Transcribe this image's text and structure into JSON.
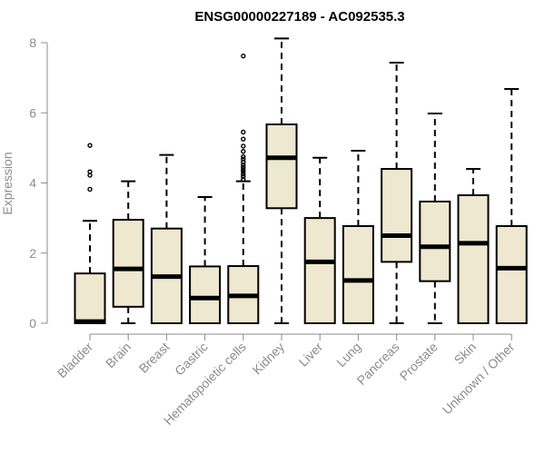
{
  "chart_data": {
    "type": "boxplot",
    "title": "ENSG00000227189 - AC092535.3",
    "xlabel": "",
    "ylabel": "Expression",
    "ylim": [
      0,
      8.2
    ],
    "yticks": [
      0,
      2,
      4,
      6,
      8
    ],
    "grid": false,
    "legend": "none",
    "colors": {
      "box_fill": "#ede8cf",
      "stroke": "#000000",
      "axis": "#8c8c8c",
      "text": "#8c8c8c"
    },
    "categories": [
      "Bladder",
      "Brain",
      "Breast",
      "Gastric",
      "Hematopoietic cells",
      "Kidney",
      "Liver",
      "Lung",
      "Pancreas",
      "Prostate",
      "Skin",
      "Unknown / Other"
    ],
    "boxes": [
      {
        "min": 0.0,
        "q1": 0.0,
        "median": 0.05,
        "q3": 1.42,
        "max": 2.92,
        "outliers": [
          3.82,
          4.22,
          4.32,
          5.07
        ]
      },
      {
        "min": 0.0,
        "q1": 0.47,
        "median": 1.55,
        "q3": 2.95,
        "max": 4.05,
        "outliers": []
      },
      {
        "min": 0.0,
        "q1": 0.0,
        "median": 1.33,
        "q3": 2.7,
        "max": 4.8,
        "outliers": []
      },
      {
        "min": 0.0,
        "q1": 0.0,
        "median": 0.72,
        "q3": 1.62,
        "max": 3.6,
        "outliers": []
      },
      {
        "min": 0.0,
        "q1": 0.0,
        "median": 0.78,
        "q3": 1.63,
        "max": 4.05,
        "outliers": [
          4.1,
          4.18,
          4.25,
          4.32,
          4.38,
          4.45,
          4.52,
          4.6,
          4.68,
          4.75,
          4.9,
          5.05,
          5.25,
          5.45,
          7.62
        ]
      },
      {
        "min": 0.0,
        "q1": 3.28,
        "median": 4.72,
        "q3": 5.67,
        "max": 8.12,
        "outliers": []
      },
      {
        "min": 0.0,
        "q1": 0.0,
        "median": 1.75,
        "q3": 3.0,
        "max": 4.72,
        "outliers": []
      },
      {
        "min": 0.0,
        "q1": 0.0,
        "median": 1.22,
        "q3": 2.77,
        "max": 4.92,
        "outliers": []
      },
      {
        "min": 0.0,
        "q1": 1.75,
        "median": 2.5,
        "q3": 4.4,
        "max": 7.43,
        "outliers": []
      },
      {
        "min": 0.0,
        "q1": 1.2,
        "median": 2.18,
        "q3": 3.47,
        "max": 5.98,
        "outliers": []
      },
      {
        "min": 0.0,
        "q1": 0.0,
        "median": 2.28,
        "q3": 3.65,
        "max": 4.4,
        "outliers": []
      },
      {
        "min": 0.0,
        "q1": 0.0,
        "median": 1.57,
        "q3": 2.77,
        "max": 6.68,
        "outliers": []
      }
    ]
  }
}
